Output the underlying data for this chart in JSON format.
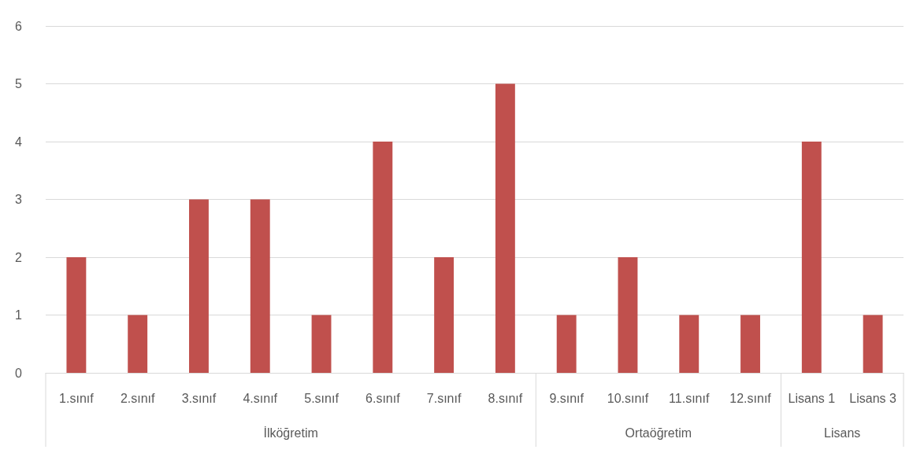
{
  "chart_data": {
    "type": "bar",
    "categories": [
      "1.sınıf",
      "2.sınıf",
      "3.sınıf",
      "4.sınıf",
      "5.sınıf",
      "6.sınıf",
      "7.sınıf",
      "8.sınıf",
      "9.sınıf",
      "10.sınıf",
      "11.sınıf",
      "12.sınıf",
      "Lisans 1",
      "Lisans 3"
    ],
    "values": [
      2,
      1,
      3,
      3,
      1,
      4,
      2,
      5,
      1,
      2,
      1,
      1,
      4,
      1
    ],
    "color": "#c0504d",
    "ylim": [
      0,
      6
    ],
    "yticks": [
      0,
      1,
      2,
      3,
      4,
      5,
      6
    ],
    "grid": "y",
    "annotations": [
      "İlköğretim",
      "Ortaöğretim",
      "Lisans"
    ]
  }
}
